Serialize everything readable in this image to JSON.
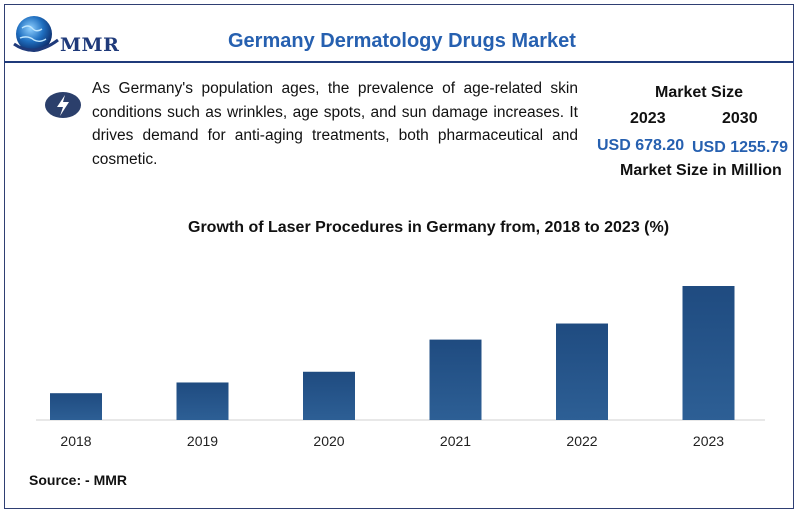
{
  "header": {
    "logo_text": "MMR",
    "title": "Germany Dermatology Drugs Market"
  },
  "description": "As Germany's population ages, the prevalence of age-related skin conditions such as wrinkles, age spots, and sun damage increases. It drives demand for anti-aging treatments, both pharmaceutical and cosmetic.",
  "market_size": {
    "heading": "Market Size",
    "year_1": "2023",
    "year_2": "2030",
    "value_1": "USD 678.20",
    "value_2": "USD 1255.79",
    "unit_label": "Market Size in Million"
  },
  "chart_data": {
    "type": "bar",
    "title": "Growth of Laser Procedures in Germany from, 2018 to 2023 (%)",
    "categories": [
      "2018",
      "2019",
      "2020",
      "2021",
      "2022",
      "2023"
    ],
    "values": [
      10,
      14,
      18,
      30,
      36,
      50
    ],
    "ylim": [
      0,
      50
    ],
    "grid": false,
    "bar_color": "#2d5f95"
  },
  "source": "Source: - MMR",
  "colors": {
    "accent": "#2660b0",
    "dark_blue": "#1f3a7a"
  }
}
